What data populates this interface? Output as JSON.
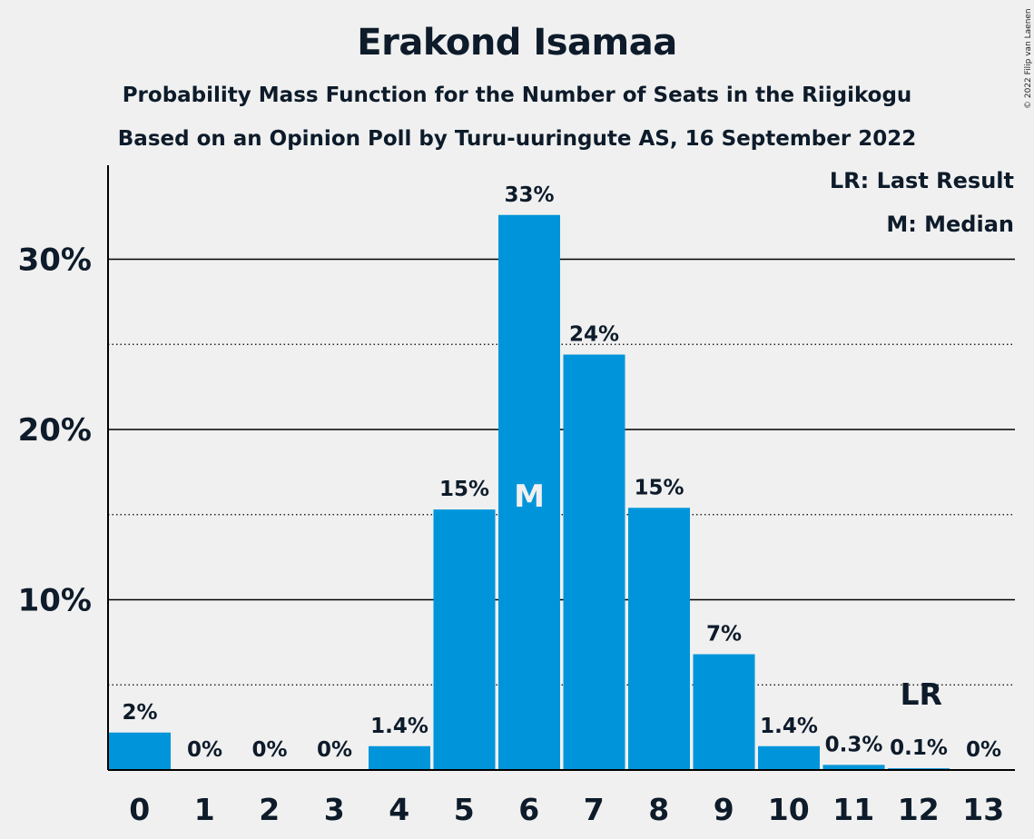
{
  "title": "Erakond Isamaa",
  "subtitle_1": "Probability Mass Function for the Number of Seats in the Riigikogu",
  "subtitle_2": "Based on an Opinion Poll by Turu-uuringute AS, 16 September 2022",
  "copyright": "© 2022 Filip van Laenen",
  "legend": {
    "last_result": "LR: Last Result",
    "median": "M: Median"
  },
  "colors": {
    "bar": "#0095da",
    "background": "#f0f0f0",
    "text": "#0d1b2a"
  },
  "chart_data": {
    "type": "bar",
    "categories": [
      "0",
      "1",
      "2",
      "3",
      "4",
      "5",
      "6",
      "7",
      "8",
      "9",
      "10",
      "11",
      "12",
      "13"
    ],
    "values": [
      2.2,
      0,
      0,
      0,
      1.4,
      15.3,
      32.6,
      24.4,
      15.4,
      6.8,
      1.4,
      0.3,
      0.1,
      0
    ],
    "labels": [
      "2%",
      "0%",
      "0%",
      "0%",
      "1.4%",
      "15%",
      "33%",
      "24%",
      "15%",
      "7%",
      "1.4%",
      "0.3%",
      "0.1%",
      "0%"
    ],
    "yticks": [
      10,
      20,
      30
    ],
    "ytick_labels": [
      "10%",
      "20%",
      "30%"
    ],
    "minor_gridlines": [
      5,
      15,
      25
    ],
    "ylim": [
      0,
      35.5
    ],
    "median_index": 6,
    "median_label": "M",
    "last_result_index": 12,
    "last_result_label": "LR",
    "grid": true
  }
}
